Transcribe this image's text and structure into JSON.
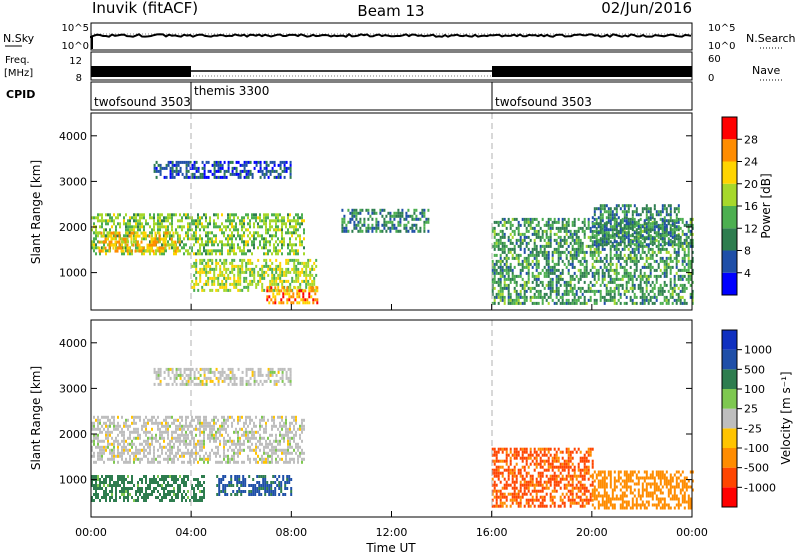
{
  "header": {
    "title_left": "Inuvik (fitACF)",
    "title_center": "Beam 13",
    "title_right": "02/Jun/2016"
  },
  "aux_panels": {
    "nsky_label": "N.Sky",
    "nsearch_label": "N.Search",
    "noise_tick_top": "10^5",
    "noise_tick_bottom": "10^0",
    "freq_label_line1": "Freq.",
    "freq_label_line2": "[MHz]",
    "freq_ticks": [
      "12",
      "8"
    ],
    "nave_label": "Nave",
    "nave_ticks": [
      "60",
      "0"
    ],
    "cpid_label": "CPID"
  },
  "cpid_segments": [
    {
      "name": "twofsound 3503",
      "start_hour": 0,
      "end_hour": 4
    },
    {
      "name": "themis 3300",
      "start_hour": 4,
      "end_hour": 16
    },
    {
      "name": "twofsound 3503",
      "start_hour": 16,
      "end_hour": 24
    }
  ],
  "colors": {
    "power": [
      "#0000ff",
      "#1f4fa8",
      "#2e7d4f",
      "#4caf50",
      "#a6d82b",
      "#ffd400",
      "#ff8c00",
      "#ff0000"
    ],
    "velocity": [
      "#ff0000",
      "#ff4500",
      "#ff8c00",
      "#ffc400",
      "#bebebe",
      "#7ec850",
      "#2e7d4f",
      "#1f4fa8",
      "#1030c0"
    ],
    "axis": "#000000",
    "dashed_line": "#b0b0b0"
  },
  "colorbars": {
    "power": {
      "label": "Power [dB]",
      "ticks": [
        "4",
        "8",
        "12",
        "16",
        "20",
        "24",
        "28"
      ]
    },
    "velocity": {
      "label": "Velocity [m s⁻¹]",
      "ticks": [
        "-1000",
        "-500",
        "-100",
        "-25",
        "25",
        "100",
        "500",
        "1000"
      ]
    }
  },
  "chart_data": [
    {
      "type": "heatmap",
      "panel": "power",
      "xlabel": "",
      "ylabel": "Slant Range [km]",
      "xlim_hours": [
        0,
        24
      ],
      "ylim_km": [
        180,
        4500
      ],
      "y_ticks": [
        "1000",
        "2000",
        "3000",
        "4000"
      ],
      "features": [
        {
          "start_hour": 0.0,
          "end_hour": 8.5,
          "range_min_km": 1400,
          "range_max_km": 2300,
          "power_db": 18
        },
        {
          "start_hour": 0.3,
          "end_hour": 3.5,
          "range_min_km": 1500,
          "range_max_km": 1900,
          "power_db": 25
        },
        {
          "start_hour": 2.5,
          "end_hour": 8.0,
          "range_min_km": 3100,
          "range_max_km": 3450,
          "power_db": 8
        },
        {
          "start_hour": 4.0,
          "end_hour": 9.0,
          "range_min_km": 600,
          "range_max_km": 1300,
          "power_db": 20
        },
        {
          "start_hour": 7.0,
          "end_hour": 9.0,
          "range_min_km": 350,
          "range_max_km": 700,
          "power_db": 27
        },
        {
          "start_hour": 10.0,
          "end_hour": 13.5,
          "range_min_km": 1900,
          "range_max_km": 2400,
          "power_db": 12
        },
        {
          "start_hour": 16.0,
          "end_hour": 24.0,
          "range_min_km": 300,
          "range_max_km": 2200,
          "power_db": 14
        },
        {
          "start_hour": 20.0,
          "end_hour": 23.5,
          "range_min_km": 1600,
          "range_max_km": 2500,
          "power_db": 12
        }
      ]
    },
    {
      "type": "heatmap",
      "panel": "velocity",
      "xlabel": "Time UT",
      "ylabel": "Slant Range [km]",
      "xlim_hours": [
        0,
        24
      ],
      "ylim_km": [
        180,
        4500
      ],
      "x_ticks": [
        "00:00",
        "04:00",
        "08:00",
        "12:00",
        "16:00",
        "20:00",
        "00:00"
      ],
      "y_ticks": [
        "1000",
        "2000",
        "3000",
        "4000"
      ],
      "features": [
        {
          "start_hour": 0.0,
          "end_hour": 8.5,
          "range_min_km": 1400,
          "range_max_km": 2400,
          "velocity_ms": 0
        },
        {
          "start_hour": 2.5,
          "end_hour": 8.0,
          "range_min_km": 3100,
          "range_max_km": 3450,
          "velocity_ms": 0
        },
        {
          "start_hour": 0.0,
          "end_hour": 4.5,
          "range_min_km": 550,
          "range_max_km": 1100,
          "velocity_ms": 150
        },
        {
          "start_hour": 5.0,
          "end_hour": 8.0,
          "range_min_km": 700,
          "range_max_km": 1100,
          "velocity_ms": 600
        },
        {
          "start_hour": 16.0,
          "end_hour": 20.0,
          "range_min_km": 400,
          "range_max_km": 1700,
          "velocity_ms": -600
        },
        {
          "start_hour": 20.0,
          "end_hour": 24.0,
          "range_min_km": 400,
          "range_max_km": 1200,
          "velocity_ms": -300
        }
      ]
    }
  ]
}
